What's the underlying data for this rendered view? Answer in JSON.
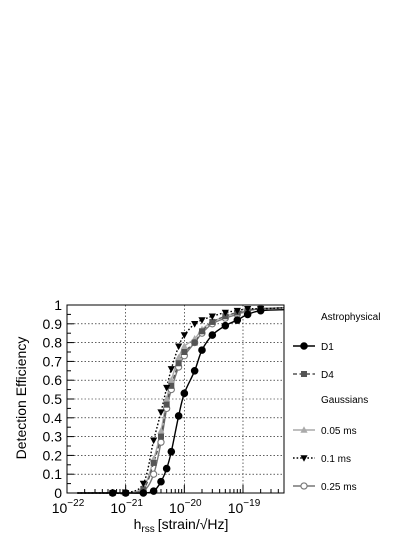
{
  "chart_data": {
    "type": "line",
    "title": "",
    "xlabel": "h",
    "xlabel_sub": "rss",
    "xlabel_unit": "[strain/√Hz]",
    "ylabel": "Detection Efficiency",
    "x_scale": "log",
    "xlim": [
      1e-22,
      5e-19
    ],
    "ylim": [
      0,
      1
    ],
    "x_ticks": [
      {
        "value": 1e-22,
        "base": "10",
        "exp": "−22"
      },
      {
        "value": 1e-21,
        "base": "10",
        "exp": "−21"
      },
      {
        "value": 1e-20,
        "base": "10",
        "exp": "−20"
      },
      {
        "value": 1e-19,
        "base": "10",
        "exp": "−19"
      }
    ],
    "y_ticks": [
      "0",
      "0.1",
      "0.2",
      "0.3",
      "0.4",
      "0.5",
      "0.6",
      "0.7",
      "0.8",
      "0.9",
      "1"
    ],
    "grid": true,
    "legend_position": "right",
    "legend_headers": [
      "Astrophysical",
      "Gaussians"
    ],
    "series": [
      {
        "name": "D1",
        "group": "Astrophysical",
        "color": "#000000",
        "marker": "circle-filled",
        "dash": "solid",
        "x": [
          6e-22,
          1e-21,
          2e-21,
          3e-21,
          4e-21,
          5e-21,
          6e-21,
          8e-21,
          1e-20,
          1.5e-20,
          2e-20,
          3e-20,
          5e-20,
          8e-20,
          1.2e-19,
          2e-19
        ],
        "y": [
          0,
          0,
          0,
          0.01,
          0.06,
          0.13,
          0.22,
          0.41,
          0.53,
          0.65,
          0.76,
          0.84,
          0.89,
          0.92,
          0.95,
          0.97
        ]
      },
      {
        "name": "D4",
        "group": "Astrophysical",
        "color": "#555555",
        "marker": "square-filled",
        "dash": "dashed",
        "x": [
          6e-22,
          1e-21,
          2e-21,
          3e-21,
          4e-21,
          5e-21,
          6e-21,
          8e-21,
          1e-20,
          1.5e-20,
          2e-20,
          3e-20,
          5e-20,
          8e-20,
          1.2e-19,
          2e-19
        ],
        "y": [
          0,
          0,
          0.02,
          0.16,
          0.3,
          0.47,
          0.57,
          0.69,
          0.75,
          0.8,
          0.86,
          0.91,
          0.94,
          0.96,
          0.97,
          0.98
        ]
      },
      {
        "name": "0.05 ms",
        "group": "Gaussians",
        "color": "#aaaaaa",
        "marker": "triangle-up-filled",
        "dash": "solid",
        "x": [
          6e-22,
          1e-21,
          2e-21,
          3e-21,
          4e-21,
          5e-21,
          6e-21,
          8e-21,
          1e-20,
          1.5e-20,
          2e-20,
          3e-20,
          5e-20,
          8e-20,
          1.2e-19,
          2e-19
        ],
        "y": [
          0,
          0,
          0.03,
          0.18,
          0.33,
          0.5,
          0.6,
          0.72,
          0.78,
          0.82,
          0.87,
          0.91,
          0.94,
          0.96,
          0.97,
          0.98
        ]
      },
      {
        "name": "0.1 ms",
        "group": "Gaussians",
        "color": "#000000",
        "marker": "triangle-down-filled",
        "dash": "dotted",
        "x": [
          6e-22,
          1e-21,
          2e-21,
          3e-21,
          4e-21,
          5e-21,
          6e-21,
          8e-21,
          1e-20,
          1.5e-20,
          2e-20,
          3e-20,
          5e-20,
          8e-20,
          1.2e-19,
          2e-19
        ],
        "y": [
          0,
          0,
          0.05,
          0.28,
          0.43,
          0.56,
          0.66,
          0.78,
          0.84,
          0.9,
          0.92,
          0.94,
          0.96,
          0.97,
          0.98,
          0.98
        ]
      },
      {
        "name": "0.25 ms",
        "group": "Gaussians",
        "color": "#777777",
        "marker": "circle-open",
        "dash": "solid",
        "x": [
          6e-22,
          1e-21,
          2e-21,
          3e-21,
          4e-21,
          5e-21,
          6e-21,
          8e-21,
          1e-20,
          1.5e-20,
          2e-20,
          3e-20,
          5e-20,
          8e-20,
          1.2e-19,
          2e-19
        ],
        "y": [
          0,
          0,
          0.01,
          0.1,
          0.27,
          0.45,
          0.55,
          0.67,
          0.73,
          0.8,
          0.85,
          0.9,
          0.93,
          0.95,
          0.97,
          0.98
        ]
      }
    ]
  }
}
